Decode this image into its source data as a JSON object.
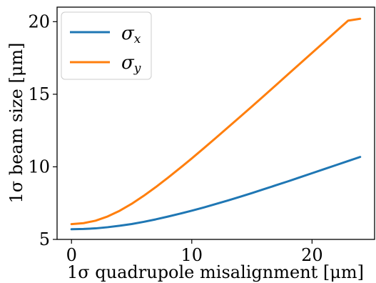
{
  "chart_data": {
    "type": "line",
    "title": "",
    "xlabel": "1σ quadrupole misalignment [μm]",
    "ylabel": "1σ beam size [μm]",
    "xlim": [
      -1.2,
      25.2
    ],
    "ylim": [
      5,
      21
    ],
    "x_ticks": [
      0,
      10,
      20
    ],
    "y_ticks": [
      5,
      10,
      15,
      20
    ],
    "grid": false,
    "legend_position": "top-left",
    "series": [
      {
        "name": "σx",
        "color": "#1f77b4",
        "x": [
          0,
          1,
          2,
          3,
          4,
          5,
          6,
          7,
          8,
          9,
          10,
          11,
          12,
          13,
          14,
          15,
          16,
          17,
          18,
          19,
          20,
          21,
          22,
          23,
          24
        ],
        "y": [
          5.7,
          5.72,
          5.76,
          5.84,
          5.94,
          6.06,
          6.21,
          6.38,
          6.57,
          6.77,
          6.98,
          7.2,
          7.44,
          7.68,
          7.93,
          8.19,
          8.46,
          8.73,
          9.0,
          9.28,
          9.56,
          9.84,
          10.12,
          10.4,
          10.68
        ]
      },
      {
        "name": "σy",
        "color": "#ff7f0e",
        "x": [
          0,
          1,
          2,
          3,
          4,
          5,
          6,
          7,
          8,
          9,
          10,
          11,
          12,
          13,
          14,
          15,
          16,
          17,
          18,
          19,
          20,
          21,
          22,
          23,
          24
        ],
        "y": [
          6.05,
          6.12,
          6.29,
          6.58,
          6.97,
          7.45,
          8.0,
          8.6,
          9.24,
          9.9,
          10.58,
          11.28,
          11.99,
          12.71,
          13.43,
          14.16,
          14.89,
          15.63,
          16.37,
          17.11,
          17.85,
          18.59,
          19.33,
          20.07,
          20.2
        ]
      }
    ]
  }
}
